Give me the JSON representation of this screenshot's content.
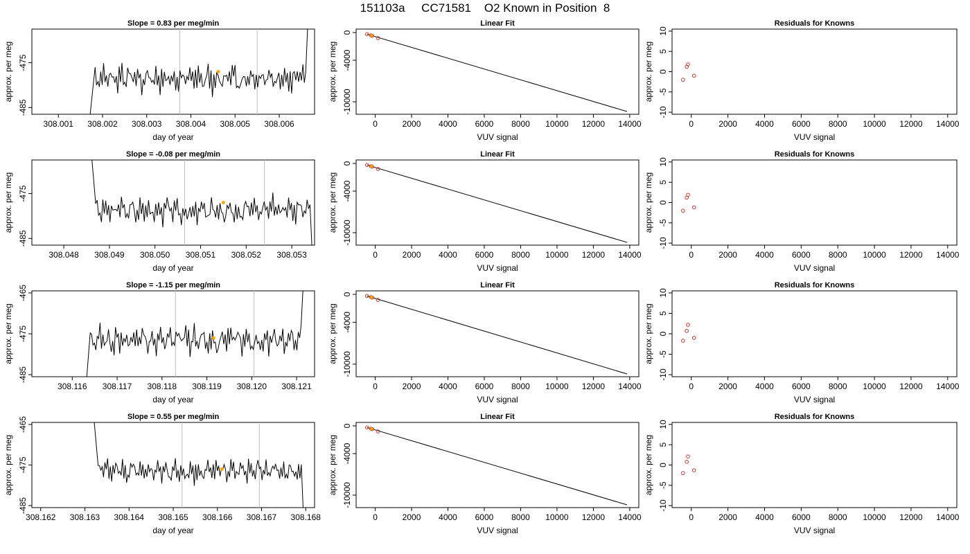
{
  "title": "151103a     CC71581    O2 Known in Position  8",
  "colors": {
    "time_series": "#000000",
    "highlight": "#ffa500",
    "marker": "#c0392b",
    "vline": "#bdbdbd",
    "fit_line": "#000000"
  },
  "chart_data": [
    {
      "panel": "row1-time-series",
      "type": "line",
      "title": "Slope =  0.83  per meg/min",
      "xlabel": "day of year",
      "ylabel": "approx. per meg",
      "xlim": [
        308.0004,
        308.0068
      ],
      "ylim": [
        -486.5,
        -467.5
      ],
      "xticks": [
        308.001,
        308.002,
        308.003,
        308.004,
        308.005,
        308.006
      ],
      "xtick_labels": [
        "308.001",
        "308.002",
        "308.003",
        "308.004",
        "308.005",
        "308.006"
      ],
      "yticks": [
        -485,
        -475
      ],
      "ytick_labels": [
        "-485",
        "-475"
      ],
      "vlines": [
        308.00375,
        308.0055
      ],
      "highlight": {
        "x": 308.00462,
        "y": -477
      },
      "start": 308.0018,
      "end": 308.0066,
      "base": -478.6,
      "amp": 3.2,
      "edge_start": -488,
      "edge_end": -466
    },
    {
      "panel": "row1-linear-fit",
      "type": "scatter+line",
      "title": "Linear Fit",
      "xlabel": "VUV signal",
      "ylabel": "approx. per meg",
      "xlim": [
        -1050,
        14500
      ],
      "ylim": [
        -11800,
        500
      ],
      "xticks": [
        0,
        2000,
        4000,
        6000,
        8000,
        10000,
        12000,
        14000
      ],
      "xtick_labels": [
        "0",
        "2000",
        "4000",
        "6000",
        "8000",
        "10000",
        "12000",
        "14000"
      ],
      "yticks": [
        0,
        -4000,
        -10000
      ],
      "ytick_labels": [
        "0",
        "-4000",
        "-10000"
      ],
      "line": [
        [
          -450,
          -230
        ],
        [
          13850,
          -11400
        ]
      ],
      "points": [
        [
          -450,
          -230
        ],
        [
          -230,
          -400
        ],
        [
          -170,
          -470
        ],
        [
          150,
          -800
        ]
      ],
      "highlight": {
        "x": -200,
        "y": -430
      }
    },
    {
      "panel": "row1-residuals",
      "type": "scatter",
      "title": "Residuals for Knowns",
      "xlabel": "VUV signal",
      "ylabel": "approx. per meg",
      "xlim": [
        -1050,
        14500
      ],
      "ylim": [
        -10.5,
        10.5
      ],
      "xticks": [
        0,
        2000,
        4000,
        6000,
        8000,
        10000,
        12000,
        14000
      ],
      "xtick_labels": [
        "0",
        "2000",
        "4000",
        "6000",
        "8000",
        "10000",
        "12000",
        "14000"
      ],
      "yticks": [
        -10,
        -5,
        0,
        5,
        10
      ],
      "ytick_labels": [
        "-10",
        "-5",
        "0",
        "5",
        "10"
      ],
      "points": [
        [
          -450,
          -2
        ],
        [
          -250,
          1.2
        ],
        [
          -180,
          1.8
        ],
        [
          150,
          -1
        ]
      ]
    },
    {
      "panel": "row2-time-series",
      "type": "line",
      "title": "Slope =  -0.08  per meg/min",
      "xlabel": "day of year",
      "ylabel": "approx. per meg",
      "xlim": [
        308.0473,
        308.0535
      ],
      "ylim": [
        -486.5,
        -467.5
      ],
      "xticks": [
        308.048,
        308.049,
        308.05,
        308.051,
        308.052,
        308.053
      ],
      "xtick_labels": [
        "308.048",
        "308.049",
        "308.050",
        "308.051",
        "308.052",
        "308.053"
      ],
      "yticks": [
        -485,
        -475
      ],
      "ytick_labels": [
        "-485",
        "-475"
      ],
      "vlines": [
        308.05065,
        308.0524
      ],
      "highlight": {
        "x": 308.0515,
        "y": -477
      },
      "start": 308.0487,
      "end": 308.0534,
      "base": -478.8,
      "amp": 3.0,
      "edge_start": -466,
      "edge_end": -488
    },
    {
      "panel": "row2-linear-fit",
      "type": "scatter+line",
      "title": "Linear Fit",
      "xlabel": "VUV signal",
      "ylabel": "approx. per meg",
      "xlim": [
        -1050,
        14500
      ],
      "ylim": [
        -11800,
        500
      ],
      "xticks": [
        0,
        2000,
        4000,
        6000,
        8000,
        10000,
        12000,
        14000
      ],
      "xtick_labels": [
        "0",
        "2000",
        "4000",
        "6000",
        "8000",
        "10000",
        "12000",
        "14000"
      ],
      "yticks": [
        0,
        -4000,
        -10000
      ],
      "ytick_labels": [
        "0",
        "-4000",
        "-10000"
      ],
      "line": [
        [
          -450,
          -230
        ],
        [
          13850,
          -11400
        ]
      ],
      "points": [
        [
          -450,
          -230
        ],
        [
          -230,
          -400
        ],
        [
          -170,
          -470
        ],
        [
          150,
          -800
        ]
      ],
      "highlight": {
        "x": -200,
        "y": -430
      }
    },
    {
      "panel": "row2-residuals",
      "type": "scatter",
      "title": "Residuals for Knowns",
      "xlabel": "VUV signal",
      "ylabel": "approx. per meg",
      "xlim": [
        -1050,
        14500
      ],
      "ylim": [
        -10.5,
        10.5
      ],
      "xticks": [
        0,
        2000,
        4000,
        6000,
        8000,
        10000,
        12000,
        14000
      ],
      "xtick_labels": [
        "0",
        "2000",
        "4000",
        "6000",
        "8000",
        "10000",
        "12000",
        "14000"
      ],
      "yticks": [
        -10,
        -5,
        0,
        5,
        10
      ],
      "ytick_labels": [
        "-10",
        "-5",
        "0",
        "5",
        "10"
      ],
      "points": [
        [
          -450,
          -2
        ],
        [
          -250,
          1.2
        ],
        [
          -180,
          1.9
        ],
        [
          150,
          -1.2
        ]
      ]
    },
    {
      "panel": "row3-time-series",
      "type": "line",
      "title": "Slope =  -1.15  per meg/min",
      "xlabel": "day of year",
      "ylabel": "approx. per meg",
      "xlim": [
        308.1151,
        308.1214
      ],
      "ylim": [
        -485.5,
        -464.5
      ],
      "xticks": [
        308.116,
        308.117,
        308.118,
        308.119,
        308.12,
        308.121
      ],
      "xtick_labels": [
        "308.116",
        "308.117",
        "308.118",
        "308.119",
        "308.120",
        "308.121"
      ],
      "yticks": [
        -485,
        -475,
        -465
      ],
      "ytick_labels": [
        "-485",
        "-475",
        "-465"
      ],
      "vlines": [
        308.1183,
        308.12005
      ],
      "highlight": {
        "x": 308.11915,
        "y": -476
      },
      "start": 308.1164,
      "end": 308.1211,
      "base": -476.5,
      "amp": 3.6,
      "edge_start": -488,
      "edge_end": -463
    },
    {
      "panel": "row3-linear-fit",
      "type": "scatter+line",
      "title": "Linear Fit",
      "xlabel": "VUV signal",
      "ylabel": "approx. per meg",
      "xlim": [
        -1050,
        14500
      ],
      "ylim": [
        -11800,
        500
      ],
      "xticks": [
        0,
        2000,
        4000,
        6000,
        8000,
        10000,
        12000,
        14000
      ],
      "xtick_labels": [
        "0",
        "2000",
        "4000",
        "6000",
        "8000",
        "10000",
        "12000",
        "14000"
      ],
      "yticks": [
        0,
        -4000,
        -10000
      ],
      "ytick_labels": [
        "0",
        "-4000",
        "-10000"
      ],
      "line": [
        [
          -450,
          -230
        ],
        [
          13850,
          -11400
        ]
      ],
      "points": [
        [
          -450,
          -230
        ],
        [
          -230,
          -400
        ],
        [
          -170,
          -470
        ],
        [
          150,
          -800
        ]
      ],
      "highlight": {
        "x": -200,
        "y": -430
      }
    },
    {
      "panel": "row3-residuals",
      "type": "scatter",
      "title": "Residuals for Knowns",
      "xlabel": "VUV signal",
      "ylabel": "approx. per meg",
      "xlim": [
        -1050,
        14500
      ],
      "ylim": [
        -10.5,
        10.5
      ],
      "xticks": [
        0,
        2000,
        4000,
        6000,
        8000,
        10000,
        12000,
        14000
      ],
      "xtick_labels": [
        "0",
        "2000",
        "4000",
        "6000",
        "8000",
        "10000",
        "12000",
        "14000"
      ],
      "yticks": [
        -10,
        -5,
        0,
        5,
        10
      ],
      "ytick_labels": [
        "-10",
        "-5",
        "0",
        "5",
        "10"
      ],
      "points": [
        [
          -450,
          -1.7
        ],
        [
          -250,
          0.7
        ],
        [
          -180,
          2.2
        ],
        [
          150,
          -1
        ]
      ]
    },
    {
      "panel": "row4-time-series",
      "type": "line",
      "title": "Slope =  0.55  per meg/min",
      "xlabel": "day of year",
      "ylabel": "approx. per meg",
      "xlim": [
        308.1618,
        308.1682
      ],
      "ylim": [
        -485.5,
        -464.5
      ],
      "xticks": [
        308.162,
        308.163,
        308.164,
        308.165,
        308.166,
        308.167,
        308.168
      ],
      "xtick_labels": [
        "308.162",
        "308.163",
        "308.164",
        "308.165",
        "308.166",
        "308.167",
        "308.168"
      ],
      "yticks": [
        -485,
        -475,
        -465
      ],
      "ytick_labels": [
        "-485",
        "-475",
        "-465"
      ],
      "vlines": [
        308.1652,
        308.16695
      ],
      "highlight": {
        "x": 308.1661,
        "y": -476
      },
      "start": 308.1633,
      "end": 308.1679,
      "base": -476.5,
      "amp": 3.0,
      "edge_start": -464,
      "edge_end": -487
    },
    {
      "panel": "row4-linear-fit",
      "type": "scatter+line",
      "title": "Linear Fit",
      "xlabel": "VUV signal",
      "ylabel": "approx. per meg",
      "xlim": [
        -1050,
        14500
      ],
      "ylim": [
        -11800,
        500
      ],
      "xticks": [
        0,
        2000,
        4000,
        6000,
        8000,
        10000,
        12000,
        14000
      ],
      "xtick_labels": [
        "0",
        "2000",
        "4000",
        "6000",
        "8000",
        "10000",
        "12000",
        "14000"
      ],
      "yticks": [
        0,
        -4000,
        -10000
      ],
      "ytick_labels": [
        "0",
        "-4000",
        "-10000"
      ],
      "line": [
        [
          -450,
          -230
        ],
        [
          13850,
          -11400
        ]
      ],
      "points": [
        [
          -450,
          -230
        ],
        [
          -230,
          -400
        ],
        [
          -170,
          -470
        ],
        [
          150,
          -800
        ]
      ],
      "highlight": {
        "x": -200,
        "y": -430
      }
    },
    {
      "panel": "row4-residuals",
      "type": "scatter",
      "title": "Residuals for Knowns",
      "xlabel": "VUV signal",
      "ylabel": "approx. per meg",
      "xlim": [
        -1050,
        14500
      ],
      "ylim": [
        -10.5,
        10.5
      ],
      "xticks": [
        0,
        2000,
        4000,
        6000,
        8000,
        10000,
        12000,
        14000
      ],
      "xtick_labels": [
        "0",
        "2000",
        "4000",
        "6000",
        "8000",
        "10000",
        "12000",
        "14000"
      ],
      "yticks": [
        -10,
        -5,
        0,
        5,
        10
      ],
      "ytick_labels": [
        "-10",
        "-5",
        "0",
        "5",
        "10"
      ],
      "points": [
        [
          -450,
          -2
        ],
        [
          -250,
          0.8
        ],
        [
          -180,
          2.1
        ],
        [
          150,
          -1.3
        ]
      ]
    }
  ]
}
